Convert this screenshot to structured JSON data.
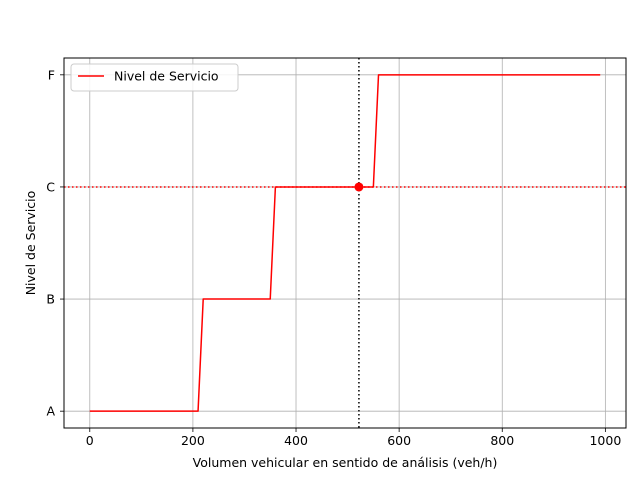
{
  "chart_data": {
    "type": "line",
    "xlabel": "Volumen vehicular en sentido de análisis (veh/h)",
    "ylabel": "Nivel de Servicio",
    "xlim": [
      -50,
      1040
    ],
    "x_ticks": [
      0,
      200,
      400,
      600,
      800,
      1000
    ],
    "x_tick_labels": [
      "0",
      "200",
      "400",
      "600",
      "800",
      "1000"
    ],
    "ylim": [
      -0.15,
      3.15
    ],
    "y_ticks": [
      0,
      1,
      2,
      3
    ],
    "y_tick_labels": [
      "A",
      "B",
      "C",
      "F"
    ],
    "grid": true,
    "legend": {
      "position": "top-left",
      "entries": [
        "Nivel de Servicio"
      ]
    },
    "series": [
      {
        "name": "Nivel de Servicio",
        "color": "#ff0000",
        "x": [
          0,
          210,
          220,
          350,
          360,
          550,
          560,
          990
        ],
        "y": [
          0,
          0,
          1,
          1,
          2,
          2,
          3,
          3
        ]
      }
    ],
    "reference_lines": {
      "vertical_x": 522,
      "horizontal_y": 2,
      "vertical_color": "#000000",
      "horizontal_color": "#ff0000"
    },
    "marker_point": {
      "x": 522,
      "y": 2,
      "color": "#ff0000"
    }
  }
}
